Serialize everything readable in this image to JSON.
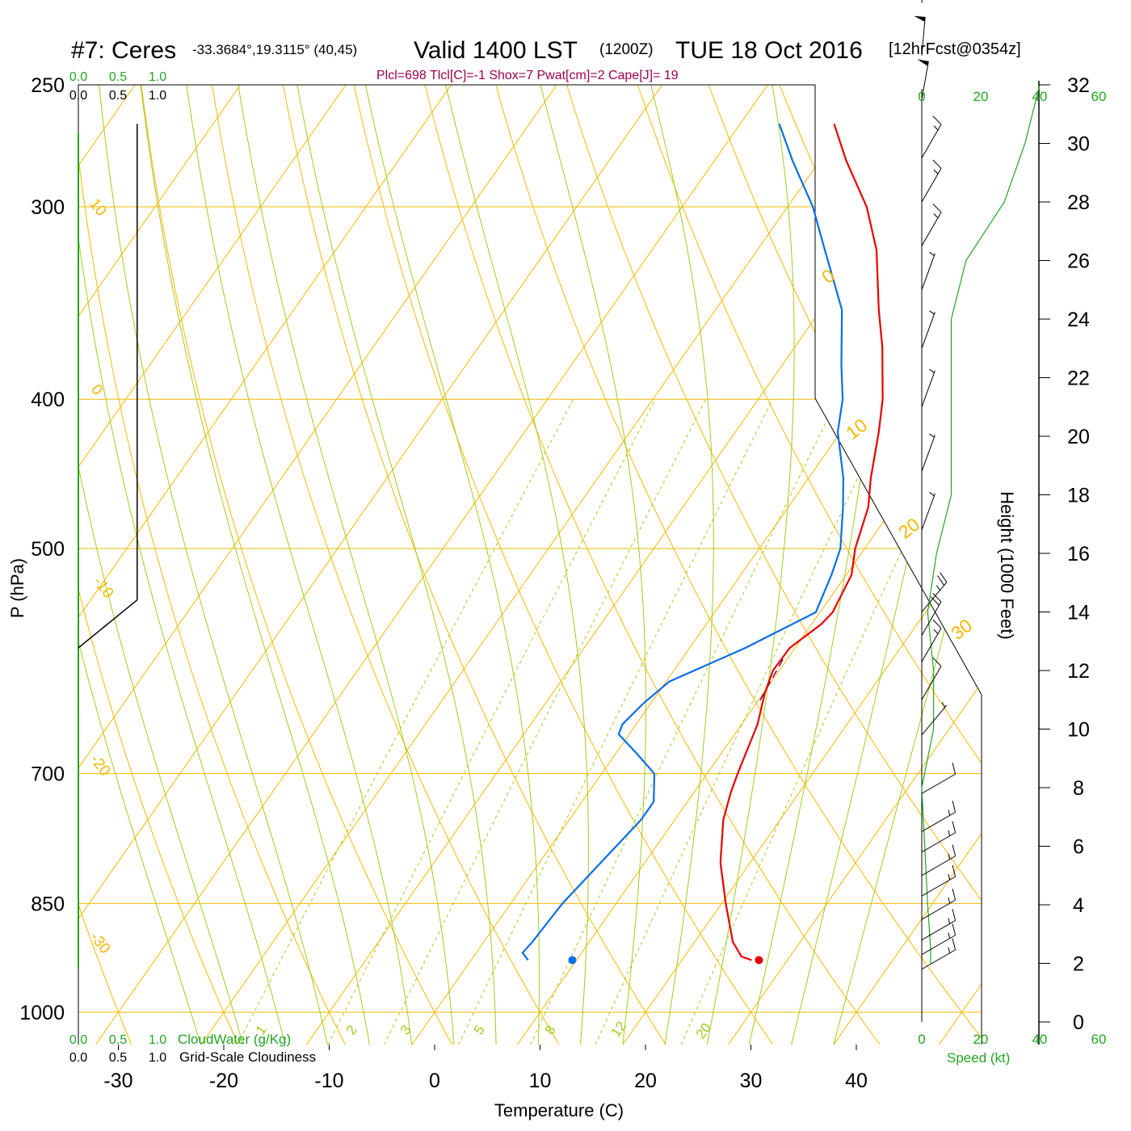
{
  "header": {
    "station": "#7: Ceres",
    "coords": "-33.3684°,19.3115° (40,45)",
    "valid": "Valid 1400 LST",
    "utc": "(1200Z)",
    "date": "TUE 18 Oct 2016",
    "fcst": "[12hrFcst@0354z]",
    "indices": "Plcl=698 Tlcl[C]=-1 Shox=7 Pwat[cm]=2 Cape[J]= 19"
  },
  "labels": {
    "xlabel": "Temperature (C)",
    "ylabel": "P (hPa)",
    "height_label": "Height (1000 Feet)",
    "cloudwater_label": "CloudWater (g/Kg)",
    "cloudiness_label": "Grid-Scale Cloudiness",
    "speed_label": "Speed (kt)"
  },
  "colors": {
    "temperature": "#e60000",
    "dewpoint": "#0a6ee6",
    "isotherm": "#f5b800",
    "dry_adiabat": "#f5b800",
    "moist_adiabat": "#9fcc1a",
    "mixing_ratio": "#9fcc1a",
    "speed": "#22a522",
    "indices": "#99004d",
    "parcel": "#660066"
  },
  "chart_data": {
    "type": "skew-t",
    "pressure_ticks": [
      "250",
      "300",
      "400",
      "500",
      "700",
      "850",
      "1000"
    ],
    "temp_ticks": [
      "-30",
      "-20",
      "-10",
      "0",
      "10",
      "20",
      "30",
      "40"
    ],
    "height_ticks": [
      "0",
      "2",
      "4",
      "6",
      "8",
      "10",
      "12",
      "14",
      "16",
      "18",
      "20",
      "22",
      "24",
      "26",
      "28",
      "30",
      "32"
    ],
    "cloud_top_ticks": [
      "0.0",
      "0.5",
      "1.0"
    ],
    "speed_ticks": [
      "0",
      "20",
      "40",
      "60"
    ],
    "isotherm_labels": [
      "10",
      "0",
      "-10",
      "-20",
      "-30"
    ],
    "dry_adiabat_labels": [
      "0",
      "10",
      "20",
      "30"
    ],
    "mixing_ratio_labels": [
      "1",
      "2",
      "3",
      "5",
      "8",
      "12",
      "20"
    ],
    "temperature_profile": [
      {
        "p": 925,
        "t": 26.6
      },
      {
        "p": 920,
        "t": 25.4
      },
      {
        "p": 900,
        "t": 23.6
      },
      {
        "p": 850,
        "t": 20.4
      },
      {
        "p": 800,
        "t": 17.2
      },
      {
        "p": 750,
        "t": 14.6
      },
      {
        "p": 720,
        "t": 13.5
      },
      {
        "p": 700,
        "t": 12.9
      },
      {
        "p": 650,
        "t": 11.5
      },
      {
        "p": 620,
        "t": 10.1
      },
      {
        "p": 600,
        "t": 9.4
      },
      {
        "p": 580,
        "t": 9.5
      },
      {
        "p": 560,
        "t": 10.9
      },
      {
        "p": 550,
        "t": 11.2
      },
      {
        "p": 520,
        "t": 10.5
      },
      {
        "p": 500,
        "t": 9.1
      },
      {
        "p": 470,
        "t": 7.6
      },
      {
        "p": 450,
        "t": 5.9
      },
      {
        "p": 420,
        "t": 3.6
      },
      {
        "p": 400,
        "t": 1.8
      },
      {
        "p": 370,
        "t": -1.7
      },
      {
        "p": 350,
        "t": -4.5
      },
      {
        "p": 320,
        "t": -8.7
      },
      {
        "p": 300,
        "t": -12.5
      },
      {
        "p": 280,
        "t": -17.5
      },
      {
        "p": 265,
        "t": -21.1
      }
    ],
    "dewpoint_profile": [
      {
        "p": 925,
        "t": 5.4
      },
      {
        "p": 915,
        "t": 4.4
      },
      {
        "p": 900,
        "t": 4.6
      },
      {
        "p": 850,
        "t": 4.9
      },
      {
        "p": 750,
        "t": 6.8
      },
      {
        "p": 730,
        "t": 6.8
      },
      {
        "p": 700,
        "t": 5.0
      },
      {
        "p": 680,
        "t": 2.1
      },
      {
        "p": 660,
        "t": -1.0
      },
      {
        "p": 650,
        "t": -1.3
      },
      {
        "p": 630,
        "t": -0.7
      },
      {
        "p": 610,
        "t": 0.3
      },
      {
        "p": 580,
        "t": 5.3
      },
      {
        "p": 550,
        "t": 9.6
      },
      {
        "p": 520,
        "t": 8.6
      },
      {
        "p": 500,
        "t": 7.7
      },
      {
        "p": 470,
        "t": 5.2
      },
      {
        "p": 450,
        "t": 3.3
      },
      {
        "p": 420,
        "t": -0.3
      },
      {
        "p": 400,
        "t": -2.0
      },
      {
        "p": 380,
        "t": -4.4
      },
      {
        "p": 350,
        "t": -8.0
      },
      {
        "p": 320,
        "t": -13.6
      },
      {
        "p": 300,
        "t": -17.6
      },
      {
        "p": 280,
        "t": -22.6
      },
      {
        "p": 265,
        "t": -26.3
      }
    ],
    "surface_temperature": {
      "p": 925,
      "t": 27.3
    },
    "surface_dewpoint": {
      "p": 925,
      "t": 9.6
    },
    "parcel_segment": [
      {
        "p": 590,
        "t": 9.6
      },
      {
        "p": 630,
        "t": 10.2
      }
    ],
    "grid_scale_cloudiness": [
      {
        "p": 265,
        "v": 0.75
      },
      {
        "p": 540,
        "v": 0.75
      },
      {
        "p": 580,
        "v": 0.0
      }
    ],
    "wind_speed_profile": [
      {
        "h": 2.0,
        "kt": 3
      },
      {
        "h": 2.5,
        "kt": 3
      },
      {
        "h": 4,
        "kt": 2
      },
      {
        "h": 6,
        "kt": 1
      },
      {
        "h": 8,
        "kt": 0
      },
      {
        "h": 10,
        "kt": 4
      },
      {
        "h": 12,
        "kt": 4
      },
      {
        "h": 14,
        "kt": 2
      },
      {
        "h": 16,
        "kt": 5
      },
      {
        "h": 18,
        "kt": 10
      },
      {
        "h": 22,
        "kt": 10
      },
      {
        "h": 24,
        "kt": 10
      },
      {
        "h": 26,
        "kt": 15
      },
      {
        "h": 28,
        "kt": 28
      },
      {
        "h": 30,
        "kt": 35
      },
      {
        "h": 32,
        "kt": 40
      }
    ],
    "wind_barbs": [
      {
        "h": 1.8,
        "dir": 300,
        "kt": 15
      },
      {
        "h": 2.3,
        "dir": 300,
        "kt": 15
      },
      {
        "h": 2.8,
        "dir": 300,
        "kt": 15
      },
      {
        "h": 3.5,
        "dir": 300,
        "kt": 15
      },
      {
        "h": 4.3,
        "dir": 300,
        "kt": 15
      },
      {
        "h": 5.0,
        "dir": 300,
        "kt": 15
      },
      {
        "h": 5.8,
        "dir": 300,
        "kt": 15
      },
      {
        "h": 6.5,
        "dir": 300,
        "kt": 15
      },
      {
        "h": 7.8,
        "dir": 300,
        "kt": 10
      },
      {
        "h": 9.8,
        "dir": 320,
        "kt": 5
      },
      {
        "h": 11.0,
        "dir": 330,
        "kt": 10
      },
      {
        "h": 12.3,
        "dir": 330,
        "kt": 15
      },
      {
        "h": 13.2,
        "dir": 330,
        "kt": 20
      },
      {
        "h": 14.0,
        "dir": 320,
        "kt": 25
      },
      {
        "h": 16.8,
        "dir": 340,
        "kt": 5
      },
      {
        "h": 18.8,
        "dir": 340,
        "kt": 5
      },
      {
        "h": 21.0,
        "dir": 340,
        "kt": 5
      },
      {
        "h": 23.0,
        "dir": 340,
        "kt": 5
      },
      {
        "h": 25.0,
        "dir": 340,
        "kt": 5
      },
      {
        "h": 26.5,
        "dir": 330,
        "kt": 15
      },
      {
        "h": 28.0,
        "dir": 330,
        "kt": 15
      },
      {
        "h": 29.5,
        "dir": 330,
        "kt": 15
      },
      {
        "h": 31.5,
        "dir": 350,
        "kt": 50
      },
      {
        "h": 33.0,
        "dir": 355,
        "kt": 50
      },
      {
        "h": 34.8,
        "dir": 355,
        "kt": 50
      }
    ]
  }
}
